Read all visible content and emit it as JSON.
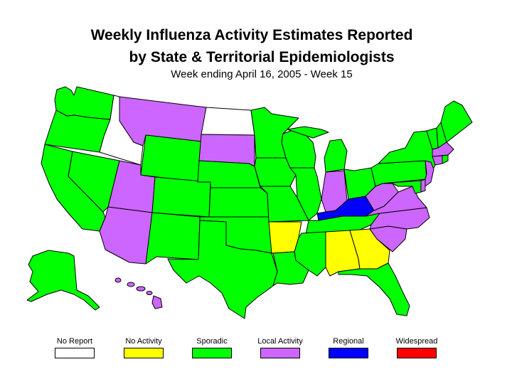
{
  "title_line1": "Weekly Influenza Activity Estimates Reported",
  "title_line2": "by State & Territorial Epidemiologists",
  "subtitle": "Week ending April 16, 2005 - Week 15",
  "colors": {
    "no_report": "#ffffff",
    "no_activity": "#ffff00",
    "sporadic": "#00ff00",
    "local": "#cc66ff",
    "regional": "#0000ff",
    "widespread": "#ff0000"
  },
  "legend": [
    {
      "key": "no_report",
      "label": "No Report"
    },
    {
      "key": "no_activity",
      "label": "No Activity"
    },
    {
      "key": "sporadic",
      "label": "Sporadic"
    },
    {
      "key": "local",
      "label": "Local Activity"
    },
    {
      "key": "regional",
      "label": "Regional"
    },
    {
      "key": "widespread",
      "label": "Widespread"
    }
  ],
  "states": {
    "WA": "sporadic",
    "OR": "sporadic",
    "CA": "sporadic",
    "NV": "sporadic",
    "ID": "no_report",
    "MT": "local",
    "WY": "sporadic",
    "UT": "local",
    "AZ": "local",
    "CO": "sporadic",
    "NM": "sporadic",
    "ND": "no_report",
    "SD": "local",
    "NE": "sporadic",
    "KS": "sporadic",
    "OK": "sporadic",
    "TX": "sporadic",
    "MN": "sporadic",
    "IA": "sporadic",
    "MO": "sporadic",
    "AR": "no_activity",
    "LA": "sporadic",
    "WI": "sporadic",
    "IL": "sporadic",
    "MI": "sporadic",
    "IN": "local",
    "OH": "sporadic",
    "KY": "regional",
    "TN": "sporadic",
    "MS": "sporadic",
    "AL": "no_activity",
    "GA": "no_activity",
    "FL": "sporadic",
    "SC": "local",
    "NC": "local",
    "VA": "local",
    "WV": "local",
    "PA": "sporadic",
    "NY": "sporadic",
    "VT": "sporadic",
    "NH": "sporadic",
    "ME": "sporadic",
    "MA": "local",
    "CT": "local",
    "RI": "sporadic",
    "NJ": "local",
    "DE": "local",
    "MD": "sporadic",
    "AK": "sporadic",
    "HI": "local"
  }
}
